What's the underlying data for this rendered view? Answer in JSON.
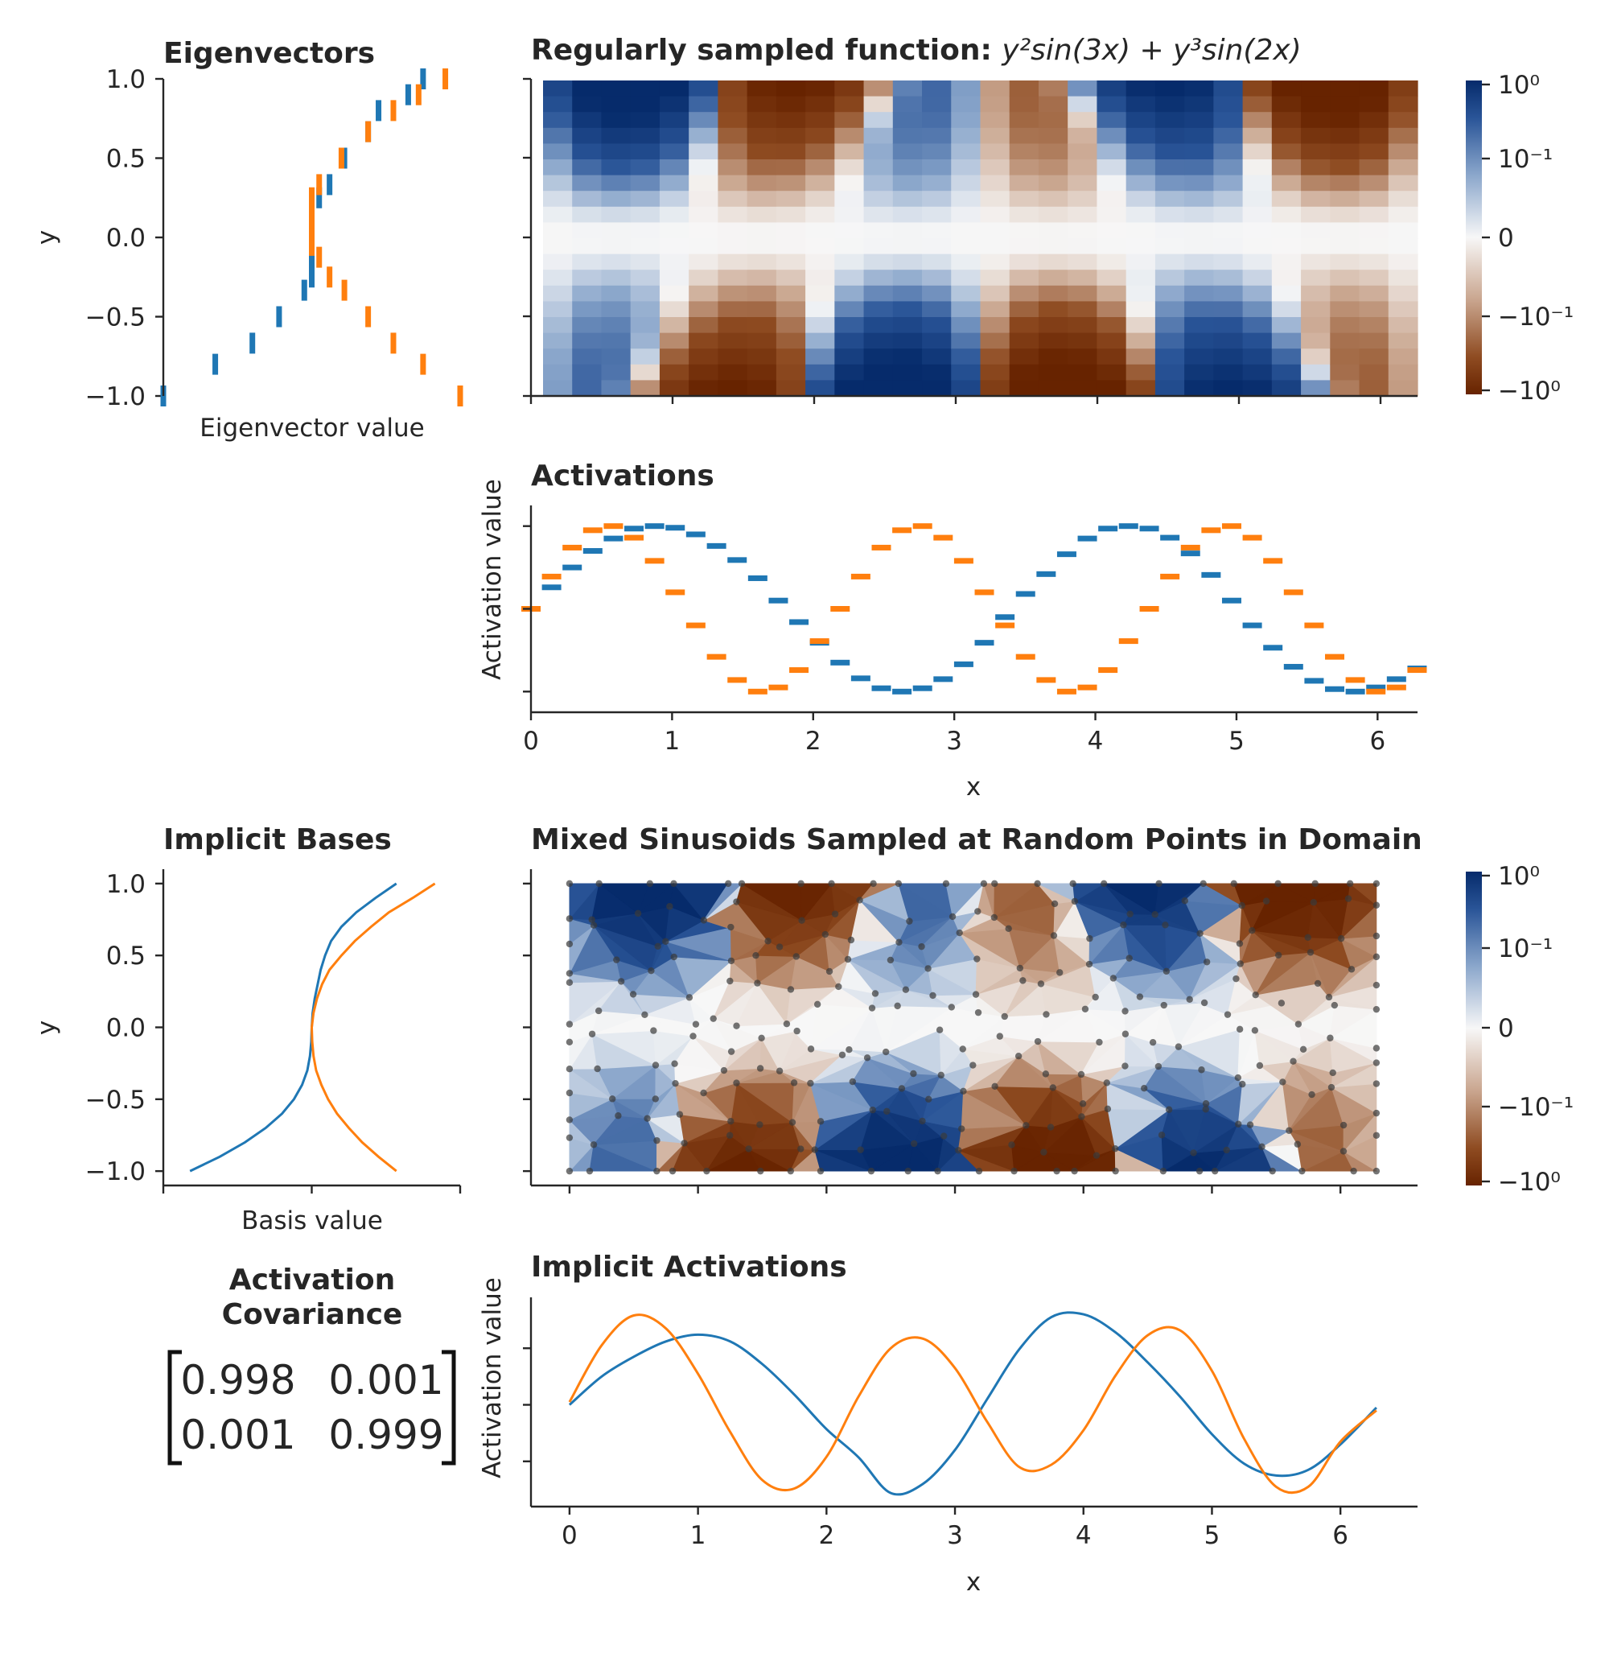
{
  "colors": {
    "blue": "#1f77b4",
    "orange": "#ff7f0e",
    "cmap_pos": "#062b6b",
    "cmap_mid": "#f7f7f7",
    "cmap_neg": "#672300",
    "mesh_point": "#3a3a3a"
  },
  "chart_data": [
    {
      "id": "eigenvectors",
      "type": "scatter",
      "title": "Eigenvectors",
      "xlabel": "Eigenvector value",
      "ylabel": "y",
      "ylim": [
        -1.0,
        1.0
      ],
      "yticks": [
        "−1.0",
        "−0.5",
        "0.0",
        "0.5",
        "1.0"
      ],
      "yticks_values": [
        -1.0,
        -0.5,
        0.0,
        0.5,
        1.0
      ],
      "xlim": [
        -1.0,
        1.0
      ],
      "x_ticklabels_shown": false,
      "y_samples": [
        -1.0,
        -0.8,
        -0.667,
        -0.5,
        -0.333,
        -0.25,
        -0.125,
        -0.05,
        0.05,
        0.125,
        0.25,
        0.333,
        0.5,
        0.667,
        0.8,
        0.9,
        1.0
      ],
      "series": [
        {
          "color": "blue",
          "values": [
            -1.0,
            -0.65,
            -0.4,
            -0.22,
            -0.05,
            0.0,
            0.0,
            0.0,
            0.0,
            0.0,
            0.05,
            0.12,
            0.22,
            0.38,
            0.45,
            0.65,
            0.75
          ]
        },
        {
          "color": "orange",
          "values": [
            1.0,
            0.75,
            0.55,
            0.38,
            0.22,
            0.12,
            0.05,
            0.0,
            0.0,
            0.0,
            0.0,
            0.05,
            0.2,
            0.38,
            0.55,
            0.72,
            0.9
          ]
        }
      ]
    },
    {
      "id": "regular-heatmap",
      "type": "heatmap",
      "title_text": "Regularly sampled function: ",
      "title_math": "y²sin(3x) + y³sin(2x)",
      "x_ticklabels_shown": false,
      "y_ticklabels_shown": false,
      "xlim": [
        0,
        6.2832
      ],
      "ylim": [
        -1,
        1
      ],
      "formula": "y^2*sin(3x) + y^3*sin(2x)",
      "nx": 30,
      "ny": 20,
      "colorbar_ticks": [
        "10⁰",
        "10⁻¹",
        "0",
        "−10⁻¹",
        "−10⁰"
      ],
      "colorbar_tick_values": [
        1.0,
        0.1,
        0.0,
        -0.1,
        -1.0
      ]
    },
    {
      "id": "activations",
      "type": "scatter",
      "title": "Activations",
      "xlabel": "x",
      "ylabel": "Activation value",
      "xlim": [
        0,
        6.2832
      ],
      "xticks": [
        "0",
        "1",
        "2",
        "3",
        "4",
        "5",
        "6"
      ],
      "xticks_values": [
        0,
        1,
        2,
        3,
        4,
        5,
        6
      ],
      "y_ticklabels_shown": false,
      "ylim": [
        -1.25,
        1.25
      ],
      "yticks_values": [
        -1.0,
        0.0,
        1.0
      ],
      "x_samples": [
        0.0,
        0.146,
        0.292,
        0.438,
        0.584,
        0.73,
        0.876,
        1.022,
        1.168,
        1.315,
        1.461,
        1.607,
        1.753,
        1.899,
        2.045,
        2.191,
        2.337,
        2.483,
        2.629,
        2.775,
        2.921,
        3.067,
        3.213,
        3.359,
        3.505,
        3.651,
        3.797,
        3.943,
        4.089,
        4.235,
        4.382,
        4.528,
        4.674,
        4.82,
        4.966,
        5.112,
        5.258,
        5.404,
        5.55,
        5.696,
        5.842,
        5.988,
        6.134,
        6.28
      ],
      "series": [
        {
          "color": "blue",
          "values": [
            0.0,
            0.26,
            0.5,
            0.7,
            0.85,
            0.97,
            1.0,
            0.98,
            0.9,
            0.76,
            0.59,
            0.37,
            0.1,
            -0.16,
            -0.41,
            -0.65,
            -0.84,
            -0.96,
            -1.0,
            -0.96,
            -0.85,
            -0.67,
            -0.41,
            -0.1,
            0.18,
            0.42,
            0.66,
            0.85,
            0.97,
            1.0,
            0.97,
            0.86,
            0.67,
            0.41,
            0.1,
            -0.2,
            -0.47,
            -0.7,
            -0.87,
            -0.97,
            -1.0,
            -0.95,
            -0.85,
            -0.72
          ]
        },
        {
          "color": "orange",
          "values": [
            0.0,
            0.39,
            0.74,
            0.95,
            1.0,
            0.86,
            0.58,
            0.2,
            -0.2,
            -0.58,
            -0.86,
            -1.0,
            -0.95,
            -0.74,
            -0.39,
            0.0,
            0.39,
            0.74,
            0.95,
            1.0,
            0.86,
            0.58,
            0.2,
            -0.2,
            -0.58,
            -0.86,
            -1.0,
            -0.95,
            -0.74,
            -0.39,
            0.0,
            0.39,
            0.74,
            0.95,
            1.0,
            0.86,
            0.58,
            0.2,
            -0.2,
            -0.58,
            -0.86,
            -1.0,
            -0.95,
            -0.74
          ]
        }
      ]
    },
    {
      "id": "implicit-bases",
      "type": "line",
      "title": "Implicit Bases",
      "xlabel": "Basis value",
      "ylabel": "y",
      "ylim": [
        -1.1,
        1.1
      ],
      "yticks": [
        "−1.0",
        "−0.5",
        "0.0",
        "0.5",
        "1.0"
      ],
      "yticks_values": [
        -1.0,
        -0.5,
        0.0,
        0.5,
        1.0
      ],
      "xlim": [
        -1.0,
        1.0
      ],
      "x_ticklabels_shown": false,
      "y_samples": [
        -1.0,
        -0.9,
        -0.8,
        -0.7,
        -0.6,
        -0.5,
        -0.4,
        -0.3,
        -0.2,
        -0.1,
        0.0,
        0.1,
        0.2,
        0.3,
        0.4,
        0.5,
        0.6,
        0.7,
        0.8,
        0.9,
        1.0
      ],
      "series": [
        {
          "color": "blue",
          "values": [
            -0.82,
            -0.62,
            -0.45,
            -0.31,
            -0.2,
            -0.12,
            -0.065,
            -0.03,
            -0.012,
            -0.003,
            0.0,
            0.006,
            0.02,
            0.04,
            0.06,
            0.09,
            0.13,
            0.2,
            0.3,
            0.43,
            0.57
          ]
        },
        {
          "color": "orange",
          "values": [
            0.57,
            0.45,
            0.34,
            0.25,
            0.17,
            0.11,
            0.065,
            0.03,
            0.012,
            0.003,
            0.0,
            0.012,
            0.035,
            0.07,
            0.12,
            0.2,
            0.29,
            0.4,
            0.52,
            0.68,
            0.83
          ]
        }
      ]
    },
    {
      "id": "random-mesh",
      "type": "heatmap",
      "title": "Mixed Sinusoids Sampled at Random Points in Domain",
      "x_ticklabels_shown": false,
      "y_ticklabels_shown": false,
      "formula": "y^2*sin(3x) + y^3*sin(2x)",
      "xlim": [
        -0.3,
        6.6
      ],
      "ylim": [
        -1.1,
        1.1
      ],
      "xticks_values": [
        0,
        1,
        2,
        3,
        4,
        5,
        6
      ],
      "yticks_values": [
        -1.0,
        -0.5,
        0.0,
        0.5,
        1.0
      ],
      "sample_points": 300,
      "colorbar_ticks": [
        "10⁰",
        "10⁻¹",
        "0",
        "−10⁻¹",
        "−10⁰"
      ],
      "colorbar_tick_values": [
        1.0,
        0.1,
        0.0,
        -0.1,
        -1.0
      ]
    },
    {
      "id": "covariance",
      "type": "table",
      "title_lines": [
        "Activation",
        "Covariance"
      ],
      "matrix": [
        [
          "0.998",
          "0.001"
        ],
        [
          "0.001",
          "0.999"
        ]
      ]
    },
    {
      "id": "implicit-activations",
      "type": "line",
      "title": "Implicit Activations",
      "xlabel": "x",
      "ylabel": "Activation value",
      "xlim": [
        -0.3,
        6.6
      ],
      "xticks": [
        "0",
        "1",
        "2",
        "3",
        "4",
        "5",
        "6"
      ],
      "xticks_values": [
        0,
        1,
        2,
        3,
        4,
        5,
        6
      ],
      "y_ticklabels_shown": false,
      "ylim": [
        -1.8,
        1.9
      ],
      "yticks_values": [
        -1.0,
        0.0,
        1.0
      ],
      "x_samples": [
        0.0,
        0.25,
        0.5,
        0.75,
        1.0,
        1.25,
        1.5,
        1.75,
        2.0,
        2.25,
        2.5,
        2.75,
        3.0,
        3.25,
        3.5,
        3.75,
        4.0,
        4.25,
        4.5,
        4.75,
        5.0,
        5.25,
        5.5,
        5.75,
        6.0,
        6.28
      ],
      "series": [
        {
          "color": "blue",
          "values": [
            0.0,
            0.5,
            0.85,
            1.12,
            1.24,
            1.12,
            0.72,
            0.18,
            -0.43,
            -0.93,
            -1.56,
            -1.4,
            -0.8,
            0.1,
            0.98,
            1.55,
            1.6,
            1.28,
            0.75,
            0.15,
            -0.52,
            -1.04,
            -1.25,
            -1.15,
            -0.7,
            -0.05
          ]
        },
        {
          "color": "orange",
          "values": [
            0.05,
            1.05,
            1.58,
            1.35,
            0.55,
            -0.48,
            -1.33,
            -1.48,
            -0.92,
            0.15,
            1.0,
            1.17,
            0.65,
            -0.3,
            -1.1,
            -1.06,
            -0.45,
            0.52,
            1.23,
            1.32,
            0.6,
            -0.6,
            -1.45,
            -1.45,
            -0.65,
            -0.1
          ]
        }
      ]
    }
  ]
}
